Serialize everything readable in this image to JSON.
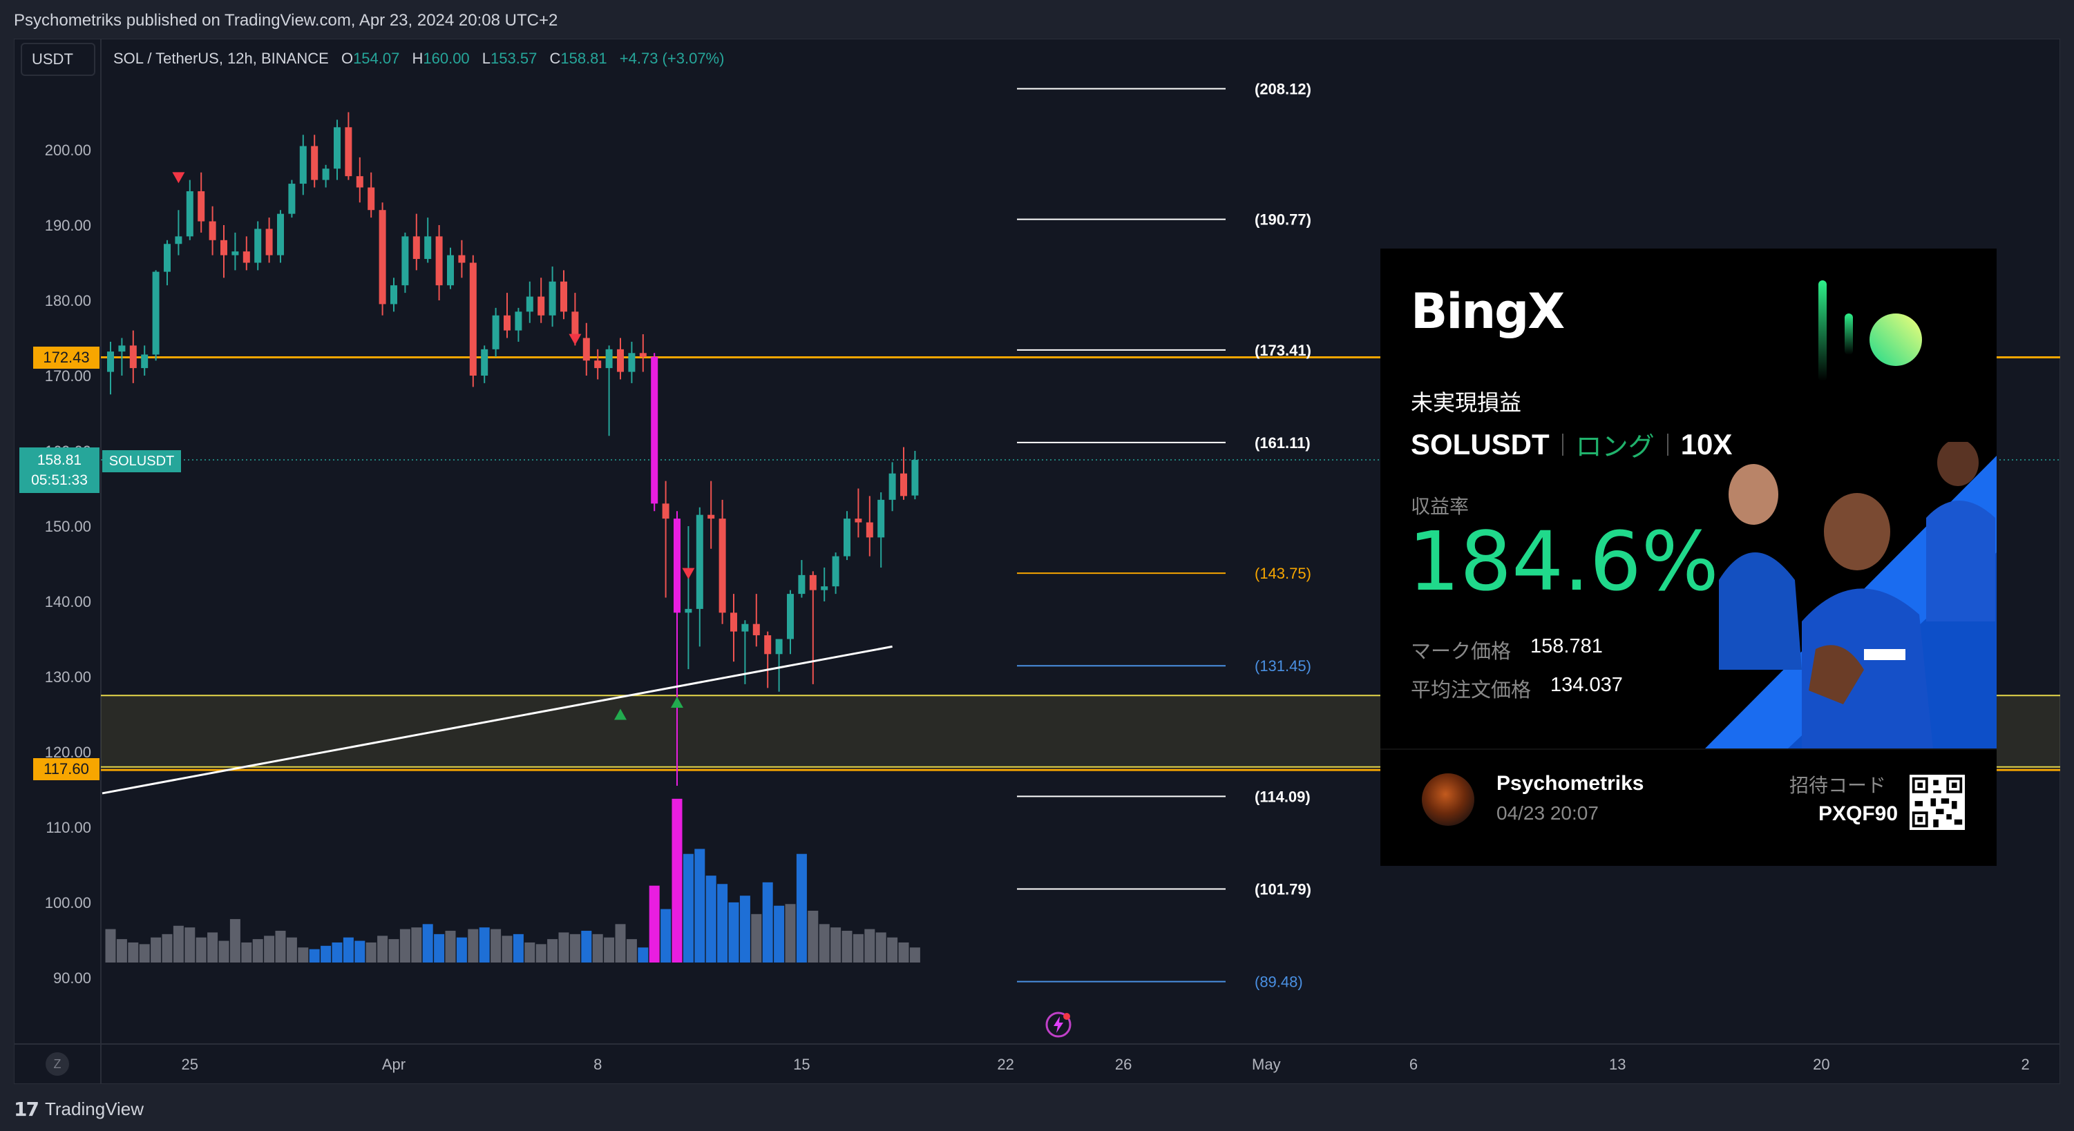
{
  "header": {
    "publish_line": "Psychometriks published on TradingView.com, Apr 23, 2024 20:08 UTC+2"
  },
  "toolbar": {
    "currency": "USDT",
    "symbol": "SOL / TetherUS, 12h, BINANCE",
    "ohlc": [
      {
        "k": "O",
        "v": "154.07"
      },
      {
        "k": "H",
        "v": "160.00"
      },
      {
        "k": "L",
        "v": "153.57"
      },
      {
        "k": "C",
        "v": "158.81"
      }
    ],
    "change": "+4.73 (+3.07%)"
  },
  "price_tags": {
    "upper_level": "172.43",
    "lower_level": "117.60",
    "current_price": "158.81",
    "countdown": "05:51:33",
    "symbol_label": "SOLUSDT"
  },
  "footer": {
    "brand": "TradingView",
    "z_label": "Z"
  },
  "colors": {
    "up": "#26a69a",
    "down": "#ef5350",
    "highlight_candle": "#e91ee0",
    "orange_level": "#f7a600",
    "yellow_zone": "#e8d94a",
    "blue_volume": "#1e6fd6",
    "gray_volume": "#5d606b"
  },
  "chart_data": {
    "type": "candlestick",
    "symbol": "SOL / TetherUS",
    "interval": "12h",
    "exchange": "BINANCE",
    "ylim": [
      86,
      206
    ],
    "y_ticks": [
      90,
      100,
      110,
      120,
      130,
      140,
      150,
      160,
      170,
      180,
      190,
      200
    ],
    "y_tick_labels": [
      "90.00",
      "100.00",
      "110.00",
      "120.00",
      "130.00",
      "140.00",
      "150.00",
      "160.00",
      "170.00",
      "180.00",
      "190.00",
      "200.00"
    ],
    "x_ticks": [
      {
        "label": "25",
        "idx": 7
      },
      {
        "label": "Apr",
        "idx": 25
      },
      {
        "label": "8",
        "idx": 43
      },
      {
        "label": "15",
        "idx": 61
      },
      {
        "label": "22",
        "idx": 79
      },
      {
        "label": "26",
        "idx": 89.4
      },
      {
        "label": "May",
        "idx": 102
      },
      {
        "label": "6",
        "idx": 115
      },
      {
        "label": "13",
        "idx": 133
      },
      {
        "label": "20",
        "idx": 151
      },
      {
        "label": "2",
        "idx": 169
      }
    ],
    "candles": [
      {
        "o": 170.5,
        "h": 174.5,
        "l": 167.5,
        "c": 173.2,
        "v": 20
      },
      {
        "o": 173.2,
        "h": 175.0,
        "l": 170.0,
        "c": 174.0,
        "v": 14
      },
      {
        "o": 174.0,
        "h": 176.0,
        "l": 169.0,
        "c": 171.0,
        "v": 12
      },
      {
        "o": 171.0,
        "h": 174.0,
        "l": 170.0,
        "c": 172.8,
        "v": 11
      },
      {
        "o": 172.8,
        "h": 184.0,
        "l": 172.0,
        "c": 183.8,
        "v": 15
      },
      {
        "o": 183.8,
        "h": 188.0,
        "l": 182.0,
        "c": 187.5,
        "v": 17
      },
      {
        "o": 187.5,
        "h": 192.0,
        "l": 186.0,
        "c": 188.5,
        "v": 22
      },
      {
        "o": 188.5,
        "h": 196.0,
        "l": 188.0,
        "c": 194.5,
        "v": 21
      },
      {
        "o": 194.5,
        "h": 197.0,
        "l": 189.0,
        "c": 190.5,
        "v": 15
      },
      {
        "o": 190.5,
        "h": 192.5,
        "l": 186.0,
        "c": 188.0,
        "v": 18
      },
      {
        "o": 188.0,
        "h": 190.0,
        "l": 183.0,
        "c": 186.0,
        "v": 13
      },
      {
        "o": 186.0,
        "h": 189.0,
        "l": 184.0,
        "c": 186.5,
        "v": 26
      },
      {
        "o": 186.5,
        "h": 188.5,
        "l": 184.0,
        "c": 185.0,
        "v": 12
      },
      {
        "o": 185.0,
        "h": 190.5,
        "l": 184.0,
        "c": 189.5,
        "v": 14
      },
      {
        "o": 189.5,
        "h": 191.0,
        "l": 185.0,
        "c": 186.0,
        "v": 16
      },
      {
        "o": 186.0,
        "h": 192.0,
        "l": 185.0,
        "c": 191.5,
        "v": 19
      },
      {
        "o": 191.5,
        "h": 196.0,
        "l": 191.0,
        "c": 195.5,
        "v": 15
      },
      {
        "o": 195.5,
        "h": 202.0,
        "l": 194.0,
        "c": 200.5,
        "v": 9
      },
      {
        "o": 200.5,
        "h": 202.0,
        "l": 195.0,
        "c": 196.0,
        "v": 8
      },
      {
        "o": 196.0,
        "h": 198.0,
        "l": 195.0,
        "c": 197.5,
        "v": 10
      },
      {
        "o": 197.5,
        "h": 204.0,
        "l": 196.0,
        "c": 203.0,
        "v": 12
      },
      {
        "o": 203.0,
        "h": 205.0,
        "l": 196.0,
        "c": 196.5,
        "v": 15
      },
      {
        "o": 196.5,
        "h": 199.0,
        "l": 193.0,
        "c": 195.0,
        "v": 13
      },
      {
        "o": 195.0,
        "h": 197.0,
        "l": 191.0,
        "c": 192.0,
        "v": 12
      },
      {
        "o": 192.0,
        "h": 193.0,
        "l": 178.0,
        "c": 179.5,
        "v": 16
      },
      {
        "o": 179.5,
        "h": 183.0,
        "l": 178.5,
        "c": 182.0,
        "v": 14
      },
      {
        "o": 182.0,
        "h": 189.0,
        "l": 181.0,
        "c": 188.5,
        "v": 20
      },
      {
        "o": 188.5,
        "h": 191.5,
        "l": 184.0,
        "c": 185.5,
        "v": 21
      },
      {
        "o": 185.5,
        "h": 191.0,
        "l": 185.0,
        "c": 188.5,
        "v": 23
      },
      {
        "o": 188.5,
        "h": 190.0,
        "l": 180.0,
        "c": 182.0,
        "v": 17
      },
      {
        "o": 182.0,
        "h": 187.0,
        "l": 181.5,
        "c": 186.0,
        "v": 19
      },
      {
        "o": 186.0,
        "h": 188.0,
        "l": 183.0,
        "c": 185.0,
        "v": 15
      },
      {
        "o": 185.0,
        "h": 186.0,
        "l": 168.5,
        "c": 170.0,
        "v": 20
      },
      {
        "o": 170.0,
        "h": 174.0,
        "l": 169.0,
        "c": 173.5,
        "v": 21
      },
      {
        "o": 173.5,
        "h": 179.0,
        "l": 172.5,
        "c": 178.0,
        "v": 20
      },
      {
        "o": 178.0,
        "h": 181.0,
        "l": 175.0,
        "c": 176.0,
        "v": 16
      },
      {
        "o": 176.0,
        "h": 179.0,
        "l": 174.5,
        "c": 178.5,
        "v": 17
      },
      {
        "o": 178.5,
        "h": 182.5,
        "l": 177.0,
        "c": 180.5,
        "v": 12
      },
      {
        "o": 180.5,
        "h": 183.0,
        "l": 177.0,
        "c": 178.0,
        "v": 11
      },
      {
        "o": 178.0,
        "h": 184.5,
        "l": 176.5,
        "c": 182.5,
        "v": 14
      },
      {
        "o": 182.5,
        "h": 184.0,
        "l": 177.5,
        "c": 178.5,
        "v": 18
      },
      {
        "o": 178.5,
        "h": 181.0,
        "l": 174.0,
        "c": 175.0,
        "v": 17
      },
      {
        "o": 175.0,
        "h": 177.0,
        "l": 170.0,
        "c": 172.0,
        "v": 19
      },
      {
        "o": 172.0,
        "h": 173.5,
        "l": 169.5,
        "c": 171.0,
        "v": 17
      },
      {
        "o": 171.0,
        "h": 174.0,
        "l": 162.0,
        "c": 173.5,
        "v": 15
      },
      {
        "o": 173.5,
        "h": 175.0,
        "l": 169.5,
        "c": 170.5,
        "v": 23
      },
      {
        "o": 170.5,
        "h": 174.5,
        "l": 169.0,
        "c": 173.0,
        "v": 14
      },
      {
        "o": 173.0,
        "h": 175.5,
        "l": 170.5,
        "c": 172.5,
        "v": 9
      },
      {
        "o": 172.5,
        "h": 173.0,
        "l": 152.0,
        "c": 153.0,
        "v": 46,
        "highlight": true
      },
      {
        "o": 153.0,
        "h": 156.0,
        "l": 140.5,
        "c": 151.0,
        "v": 32
      },
      {
        "o": 151.0,
        "h": 152.0,
        "l": 115.5,
        "c": 138.5,
        "v": 98,
        "highlight": true
      },
      {
        "o": 138.5,
        "h": 150.0,
        "l": 131.0,
        "c": 139.0,
        "v": 65
      },
      {
        "o": 139.0,
        "h": 152.5,
        "l": 134.0,
        "c": 151.5,
        "v": 68
      },
      {
        "o": 151.5,
        "h": 156.0,
        "l": 147.0,
        "c": 151.0,
        "v": 52
      },
      {
        "o": 151.0,
        "h": 153.5,
        "l": 137.0,
        "c": 138.5,
        "v": 47
      },
      {
        "o": 138.5,
        "h": 141.0,
        "l": 132.0,
        "c": 136.0,
        "v": 36
      },
      {
        "o": 136.0,
        "h": 137.5,
        "l": 129.0,
        "c": 137.0,
        "v": 40
      },
      {
        "o": 137.0,
        "h": 141.0,
        "l": 134.0,
        "c": 135.5,
        "v": 29
      },
      {
        "o": 135.5,
        "h": 136.0,
        "l": 128.5,
        "c": 133.0,
        "v": 48
      },
      {
        "o": 133.0,
        "h": 134.5,
        "l": 128.0,
        "c": 135.0,
        "v": 34
      },
      {
        "o": 135.0,
        "h": 141.5,
        "l": 133.0,
        "c": 141.0,
        "v": 35
      },
      {
        "o": 141.0,
        "h": 145.5,
        "l": 140.5,
        "c": 143.5,
        "v": 65
      },
      {
        "o": 143.5,
        "h": 144.0,
        "l": 129.0,
        "c": 141.5,
        "v": 31
      },
      {
        "o": 141.5,
        "h": 144.5,
        "l": 140.0,
        "c": 142.0,
        "v": 23
      },
      {
        "o": 142.0,
        "h": 146.5,
        "l": 141.0,
        "c": 146.0,
        "v": 21
      },
      {
        "o": 146.0,
        "h": 152.0,
        "l": 145.5,
        "c": 151.0,
        "v": 19
      },
      {
        "o": 151.0,
        "h": 155.0,
        "l": 148.5,
        "c": 150.5,
        "v": 17
      },
      {
        "o": 150.5,
        "h": 154.0,
        "l": 146.0,
        "c": 148.5,
        "v": 20
      },
      {
        "o": 148.5,
        "h": 154.5,
        "l": 144.5,
        "c": 153.5,
        "v": 18
      },
      {
        "o": 153.5,
        "h": 158.5,
        "l": 152.0,
        "c": 157.0,
        "v": 15
      },
      {
        "o": 157.0,
        "h": 160.5,
        "l": 153.5,
        "c": 154.0,
        "v": 12
      },
      {
        "o": 154.07,
        "h": 160.0,
        "l": 153.57,
        "c": 158.81,
        "v": 9
      }
    ],
    "volume_highlight_idx": [
      48,
      50
    ],
    "volume_blue_idx": [
      18,
      19,
      20,
      21,
      22,
      28,
      29,
      31,
      33,
      36,
      42,
      47,
      49,
      51,
      52,
      53,
      54,
      55,
      56,
      58,
      59,
      61
    ],
    "annotations": {
      "down_arrows": [
        {
          "idx": 6,
          "y": 196.3
        },
        {
          "idx": 41,
          "y": 174.8
        },
        {
          "idx": 51,
          "y": 143.7
        }
      ],
      "up_arrows": [
        {
          "idx": 45,
          "y": 125.0
        },
        {
          "idx": 50,
          "y": 126.6
        }
      ]
    },
    "horizontal_levels": [
      {
        "value": 172.43,
        "color": "#f7a600"
      },
      {
        "value": 117.6,
        "color": "#f7a600"
      }
    ],
    "support_zone": {
      "from": 118.0,
      "to": 127.5,
      "color": "#e8d94a"
    },
    "trendline": {
      "from": {
        "idx": 0,
        "y": 114.5
      },
      "to": {
        "idx": 69,
        "y": 134.0
      }
    },
    "projection_levels": [
      {
        "label": "(208.12)",
        "value": 208.12,
        "color": "#ffffff"
      },
      {
        "label": "(190.77)",
        "value": 190.77,
        "color": "#ffffff"
      },
      {
        "label": "(173.41)",
        "value": 173.41,
        "color": "#ffffff"
      },
      {
        "label": "(161.11)",
        "value": 161.11,
        "color": "#ffffff"
      },
      {
        "label": "(143.75)",
        "value": 143.75,
        "color": "#f7a600"
      },
      {
        "label": "(131.45)",
        "value": 131.45,
        "color": "#4a90e2"
      },
      {
        "label": "(114.09)",
        "value": 114.09,
        "color": "#ffffff"
      },
      {
        "label": "(101.79)",
        "value": 101.79,
        "color": "#ffffff"
      },
      {
        "label": "(89.48)",
        "value": 89.48,
        "color": "#4a90e2"
      }
    ]
  },
  "bingx_card": {
    "logo": "BingX",
    "unrealized_label": "未実現損益",
    "pair": "SOLUSDT",
    "side": "ロング",
    "leverage": "10X",
    "yield_label": "収益率",
    "yield_value": "184.6%",
    "mark_price_label": "マーク価格",
    "mark_price": "158.781",
    "avg_price_label": "平均注文価格",
    "avg_price": "134.037",
    "username": "Psychometriks",
    "post_time": "04/23 20:07",
    "invite_label": "招待コード",
    "invite_code": "PXQF90"
  }
}
